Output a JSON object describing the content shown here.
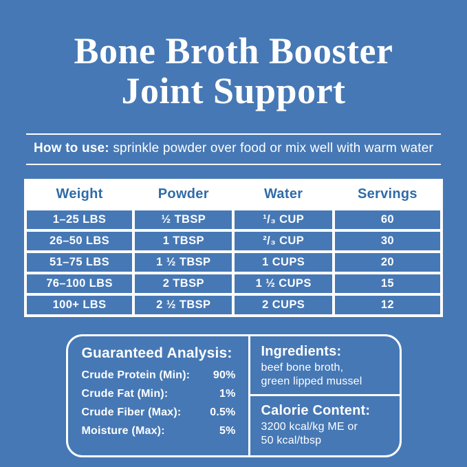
{
  "colors": {
    "background": "#4678b5",
    "accent_blue": "#2f6ba8",
    "text_white": "#ffffff"
  },
  "title": {
    "line1": "Bone Broth Booster",
    "line2": "Joint Support"
  },
  "howto": {
    "label": "How to use:",
    "text": "sprinkle powder over food or mix well with warm water"
  },
  "table": {
    "headers": [
      "Weight",
      "Powder",
      "Water",
      "Servings"
    ],
    "rows": [
      {
        "weight": "1–25 LBS",
        "powder": "½ TBSP",
        "water": "¹/₃ CUP",
        "servings": "60"
      },
      {
        "weight": "26–50 LBS",
        "powder": "1 TBSP",
        "water": "²/₃ CUP",
        "servings": "30"
      },
      {
        "weight": "51–75 LBS",
        "powder": "1 ½ TBSP",
        "water": "1 CUPS",
        "servings": "20"
      },
      {
        "weight": "76–100 LBS",
        "powder": "2 TBSP",
        "water": "1 ½ CUPS",
        "servings": "15"
      },
      {
        "weight": "100+ LBS",
        "powder": "2 ½ TBSP",
        "water": "2 CUPS",
        "servings": "12"
      }
    ]
  },
  "analysis": {
    "title": "Guaranteed Analysis:",
    "rows": [
      {
        "label": "Crude Protein (Min):",
        "value": "90%"
      },
      {
        "label": "Crude Fat (Min):",
        "value": "1%"
      },
      {
        "label": "Crude Fiber (Max):",
        "value": "0.5%"
      },
      {
        "label": "Moisture (Max):",
        "value": "5%"
      }
    ]
  },
  "ingredients": {
    "title": "Ingredients:",
    "lines": [
      "beef bone broth,",
      "green lipped mussel"
    ]
  },
  "calories": {
    "title": "Calorie Content:",
    "lines": [
      "3200 kcal/kg ME or",
      "50 kcal/tbsp"
    ]
  }
}
